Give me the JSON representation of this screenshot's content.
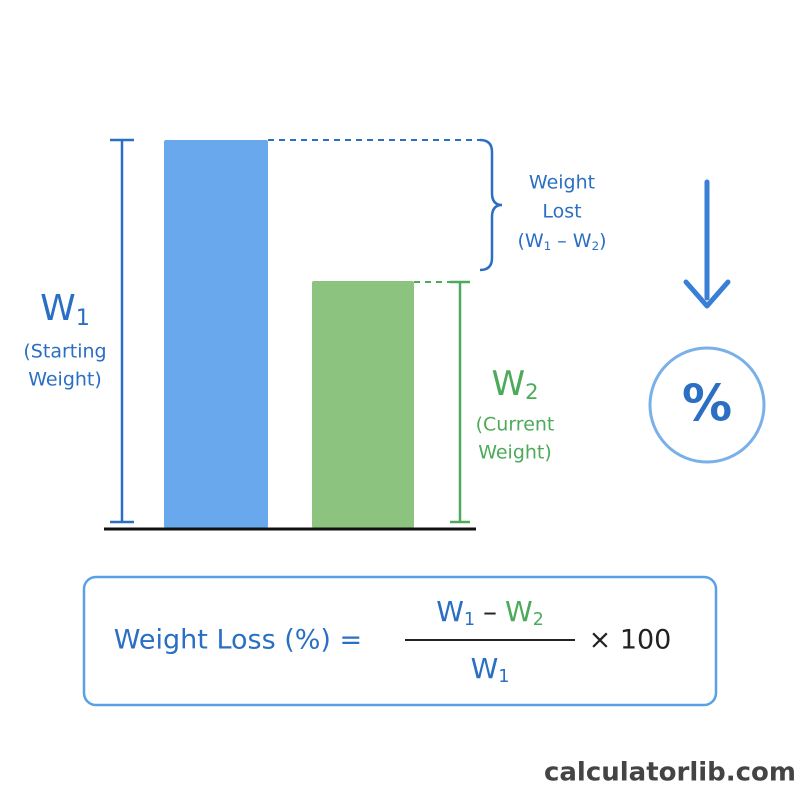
{
  "starting": {
    "symbol": "W",
    "subscript": "1",
    "label_lines": [
      "(Starting",
      "Weight)"
    ]
  },
  "current": {
    "symbol": "W",
    "subscript": "2",
    "label_lines": [
      "(Current",
      "Weight)"
    ]
  },
  "weight_lost": {
    "label_lines": [
      "Weight",
      "Lost"
    ],
    "expression": {
      "open": "(W",
      "sub_a": "1",
      "minus": " – W",
      "sub_b": "2",
      "close": ")"
    }
  },
  "percent_icon": "%",
  "formula": {
    "lhs": "Weight Loss (%) =",
    "numerator": {
      "symbol_a": "W",
      "sub_a": "1",
      "minus": "–",
      "symbol_b": "W",
      "sub_b": "2"
    },
    "denominator": {
      "symbol": "W",
      "subscript": "1"
    },
    "multiplier": "× 100"
  },
  "footer": "calculatorlib.com"
}
